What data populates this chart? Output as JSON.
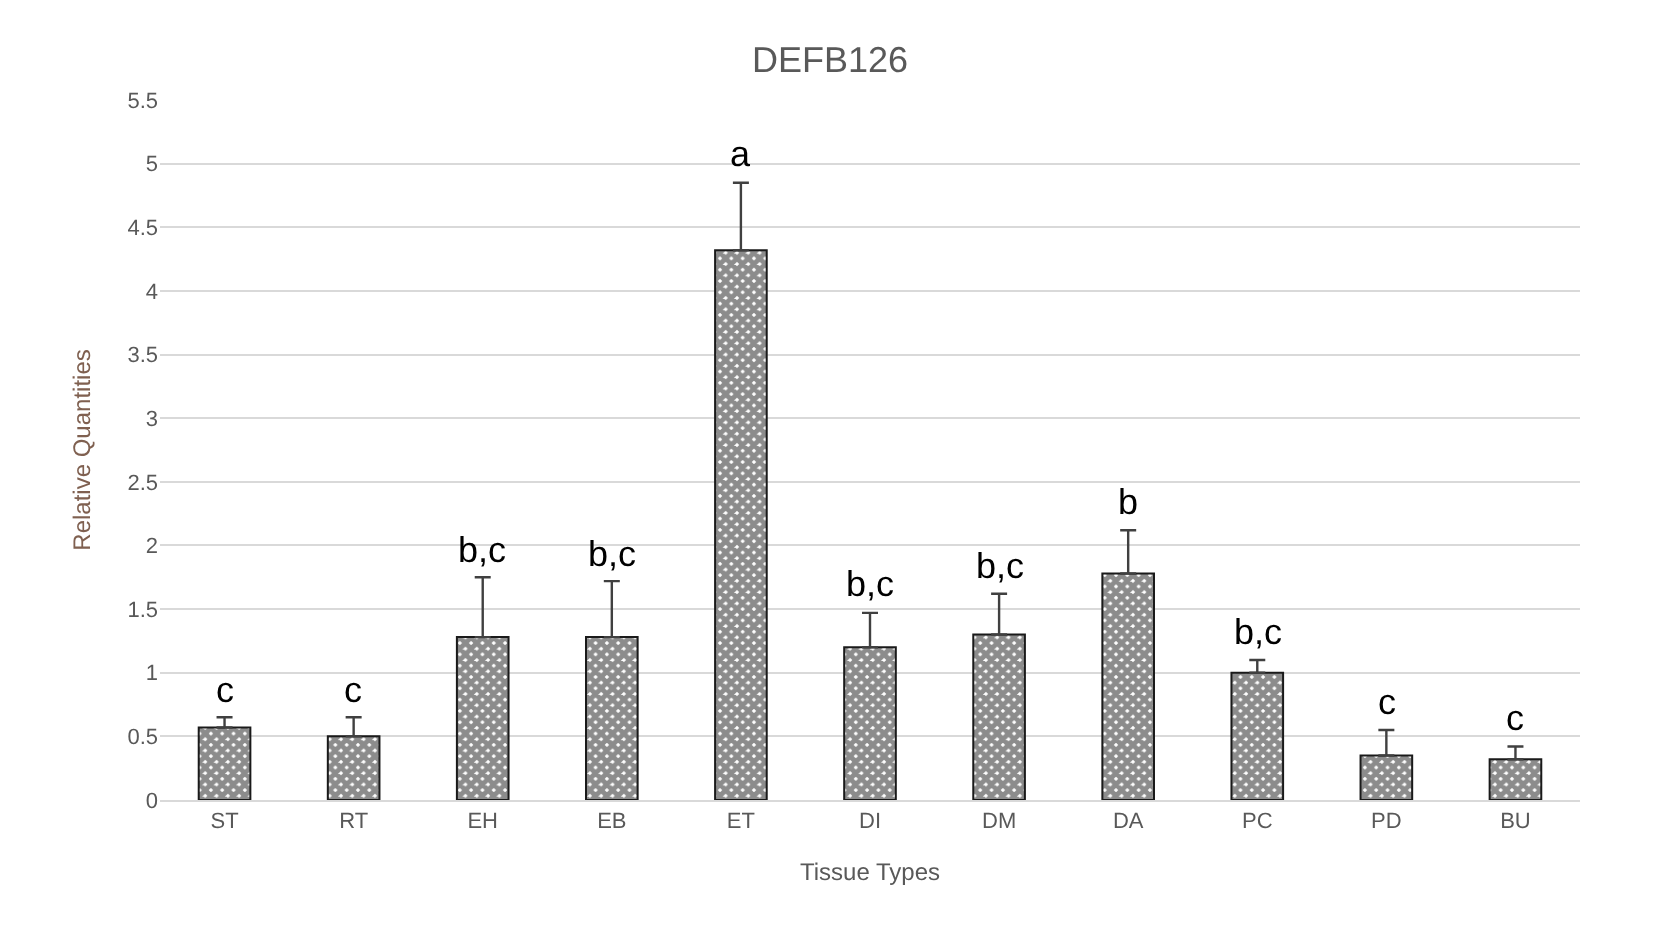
{
  "chart_data": {
    "type": "bar",
    "title": "DEFB126",
    "xlabel": "Tissue Types",
    "ylabel": "Relative Quantities",
    "categories": [
      "ST",
      "RT",
      "EH",
      "EB",
      "ET",
      "DI",
      "DM",
      "DA",
      "PC",
      "PD",
      "BU"
    ],
    "values": [
      0.57,
      0.5,
      1.28,
      1.28,
      4.32,
      1.2,
      1.3,
      1.78,
      1.0,
      0.35,
      0.32
    ],
    "errors": [
      [
        0.57,
        0.65
      ],
      [
        0.5,
        0.65
      ],
      [
        1.28,
        1.75
      ],
      [
        1.28,
        1.72
      ],
      [
        4.32,
        4.85
      ],
      [
        1.2,
        1.47
      ],
      [
        1.3,
        1.62
      ],
      [
        1.78,
        2.12
      ],
      [
        1.0,
        1.1
      ],
      [
        0.35,
        0.55
      ],
      [
        0.32,
        0.42
      ]
    ],
    "color": "#1a1a1a",
    "ylim": [
      0,
      5.5
    ],
    "yticks": [
      0,
      0.5,
      1,
      1.5,
      2,
      2.5,
      3,
      3.5,
      4,
      4.5,
      5,
      5.5
    ],
    "grid": "y",
    "annotations": [
      {
        "text": "c",
        "x": "ST",
        "y": 0.65
      },
      {
        "text": "c",
        "x": "RT",
        "y": 0.65
      },
      {
        "text": "b,c",
        "x": "EH",
        "y": 1.75
      },
      {
        "text": "b,c",
        "x": "EB",
        "y": 1.72
      },
      {
        "text": "a",
        "x": "ET",
        "y": 4.85
      },
      {
        "text": "b,c",
        "x": "DI",
        "y": 1.47
      },
      {
        "text": "b,c",
        "x": "DM",
        "y": 1.62
      },
      {
        "text": "b",
        "x": "DA",
        "y": 2.12
      },
      {
        "text": "b,c",
        "x": "PC",
        "y": 1.1
      },
      {
        "text": "c",
        "x": "PD",
        "y": 0.55
      },
      {
        "text": "c",
        "x": "BU",
        "y": 0.42
      }
    ]
  }
}
